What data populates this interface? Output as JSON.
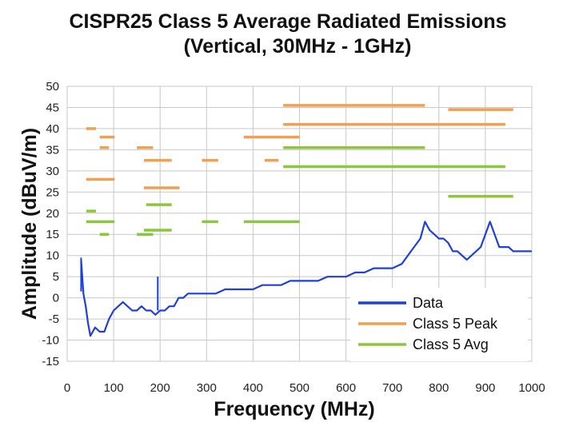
{
  "chart_data": {
    "type": "line",
    "title": [
      "CISPR25 Class 5 Average Radiated Emissions",
      "(Vertical, 30MHz - 1GHz)"
    ],
    "xlabel": "Frequency (MHz)",
    "ylabel": "Amplitude (dBuV/m)",
    "xlim": [
      0,
      1000
    ],
    "ylim": [
      -15,
      50
    ],
    "xticks": [
      0,
      100,
      200,
      300,
      400,
      500,
      600,
      700,
      800,
      900,
      1000
    ],
    "yticks": [
      -15,
      -10,
      -5,
      0,
      5,
      10,
      15,
      20,
      25,
      30,
      35,
      40,
      45,
      50
    ],
    "grid": true,
    "legend_position": "bottom-right",
    "colors": {
      "data": "#1f3fd8",
      "peak": "#f0a050",
      "avg": "#8cc63f",
      "grid": "#c8c8c8"
    },
    "series": [
      {
        "name": "Data",
        "key": "data",
        "x": [
          30,
          35,
          40,
          45,
          50,
          55,
          60,
          70,
          80,
          90,
          100,
          110,
          120,
          130,
          140,
          150,
          160,
          170,
          180,
          190,
          200,
          210,
          220,
          230,
          240,
          250,
          260,
          280,
          300,
          320,
          340,
          360,
          380,
          400,
          420,
          440,
          460,
          480,
          500,
          520,
          540,
          560,
          580,
          600,
          620,
          640,
          660,
          680,
          700,
          720,
          740,
          760,
          770,
          780,
          790,
          800,
          810,
          820,
          830,
          840,
          850,
          860,
          870,
          880,
          890,
          900,
          910,
          920,
          930,
          940,
          950,
          960,
          980,
          1000
        ],
        "values": [
          9,
          1,
          -2,
          -6,
          -9,
          -8,
          -7,
          -8,
          -8,
          -5,
          -3,
          -2,
          -1,
          -2,
          -3,
          -3,
          -2,
          -3,
          -3,
          -4,
          -3,
          -3,
          -2,
          -2,
          0,
          0,
          1,
          1,
          1,
          1,
          2,
          2,
          2,
          2,
          3,
          3,
          3,
          4,
          4,
          4,
          4,
          5,
          5,
          5,
          6,
          6,
          7,
          7,
          7,
          8,
          11,
          14,
          18,
          16,
          15,
          14,
          14,
          13,
          11,
          11,
          10,
          9,
          10,
          11,
          12,
          15,
          18,
          15,
          12,
          12,
          12,
          11,
          11,
          11
        ],
        "spikes": [
          [
            30,
            9.5
          ],
          [
            195,
            5
          ]
        ]
      }
    ],
    "limits": [
      {
        "name": "Class 5 Peak",
        "key": "peak",
        "segments": [
          [
            41,
            62,
            40
          ],
          [
            70,
            102,
            38
          ],
          [
            70,
            90,
            35.5
          ],
          [
            150,
            185,
            35.5
          ],
          [
            165,
            225,
            32.5
          ],
          [
            41,
            102,
            28
          ],
          [
            165,
            242,
            26
          ],
          [
            290,
            325,
            32.5
          ],
          [
            380,
            500,
            38
          ],
          [
            425,
            455,
            32.5
          ],
          [
            465,
            770,
            45.5
          ],
          [
            465,
            943,
            41
          ],
          [
            820,
            960,
            44.5
          ]
        ]
      },
      {
        "name": "Class 5 Avg",
        "key": "avg",
        "segments": [
          [
            41,
            62,
            20.5
          ],
          [
            41,
            102,
            18
          ],
          [
            70,
            90,
            15
          ],
          [
            150,
            185,
            15
          ],
          [
            165,
            225,
            16
          ],
          [
            170,
            225,
            22
          ],
          [
            290,
            325,
            18
          ],
          [
            380,
            500,
            18
          ],
          [
            465,
            770,
            35.5
          ],
          [
            465,
            943,
            31
          ],
          [
            820,
            960,
            24
          ]
        ]
      }
    ],
    "legend": [
      "Data",
      "Class 5 Peak",
      "Class 5 Avg"
    ]
  }
}
